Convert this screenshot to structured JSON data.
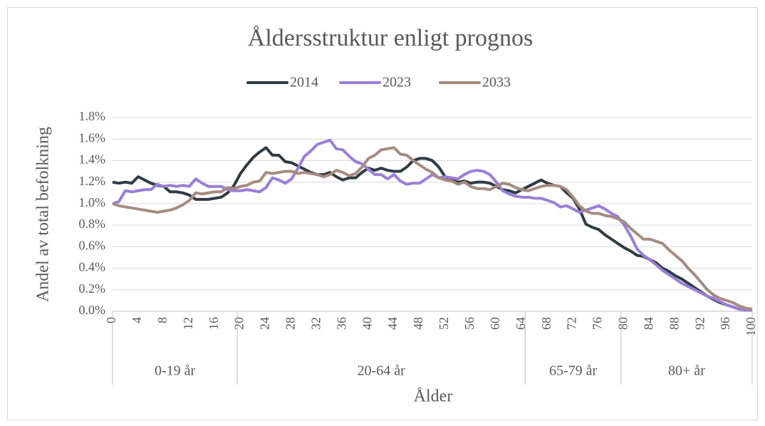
{
  "chart_data": {
    "type": "line",
    "title": "Åldersstruktur enligt prognos",
    "x_label": "Ålder",
    "y_label": "Andel av total befolkning",
    "x": [
      0,
      1,
      2,
      3,
      4,
      5,
      6,
      7,
      8,
      9,
      10,
      11,
      12,
      13,
      14,
      15,
      16,
      17,
      18,
      19,
      20,
      21,
      22,
      23,
      24,
      25,
      26,
      27,
      28,
      29,
      30,
      31,
      32,
      33,
      34,
      35,
      36,
      37,
      38,
      39,
      40,
      41,
      42,
      43,
      44,
      45,
      46,
      47,
      48,
      49,
      50,
      51,
      52,
      53,
      54,
      55,
      56,
      57,
      58,
      59,
      60,
      61,
      62,
      63,
      64,
      65,
      66,
      67,
      68,
      69,
      70,
      71,
      72,
      73,
      74,
      75,
      76,
      77,
      78,
      79,
      80,
      81,
      82,
      83,
      84,
      85,
      86,
      87,
      88,
      89,
      90,
      91,
      92,
      93,
      94,
      95,
      96,
      97,
      98,
      99,
      100
    ],
    "xlim": [
      0,
      100
    ],
    "xticks": [
      0,
      4,
      8,
      12,
      16,
      20,
      24,
      28,
      32,
      36,
      40,
      44,
      48,
      52,
      56,
      60,
      64,
      68,
      72,
      76,
      80,
      84,
      88,
      92,
      96,
      100
    ],
    "x_groups": [
      {
        "label": "0-19 år",
        "from": 0,
        "to": 19
      },
      {
        "label": "20-64 år",
        "from": 20,
        "to": 64
      },
      {
        "label": "65-79 år",
        "from": 65,
        "to": 79
      },
      {
        "label": "80+ år",
        "from": 80,
        "to": 100
      }
    ],
    "ylim": [
      0,
      1.8
    ],
    "yticks": [
      {
        "value": 0,
        "label": "0.0%"
      },
      {
        "value": 0.2,
        "label": "0.2%"
      },
      {
        "value": 0.4,
        "label": "0.4%"
      },
      {
        "value": 0.6,
        "label": "0.6%"
      },
      {
        "value": 0.8,
        "label": "0.8%"
      },
      {
        "value": 1.0,
        "label": "1.0%"
      },
      {
        "value": 1.2,
        "label": "1.2%"
      },
      {
        "value": 1.4,
        "label": "1.4%"
      },
      {
        "value": 1.6,
        "label": "1.6%"
      },
      {
        "value": 1.8,
        "label": "1.8%"
      }
    ],
    "grid": true,
    "legend": "top",
    "series": [
      {
        "name": "2014",
        "color": "#2f3b44",
        "values": [
          1.2,
          1.19,
          1.2,
          1.19,
          1.25,
          1.22,
          1.19,
          1.17,
          1.16,
          1.11,
          1.11,
          1.1,
          1.08,
          1.04,
          1.04,
          1.04,
          1.05,
          1.06,
          1.1,
          1.17,
          1.28,
          1.36,
          1.43,
          1.48,
          1.52,
          1.45,
          1.45,
          1.39,
          1.38,
          1.35,
          1.32,
          1.29,
          1.27,
          1.27,
          1.29,
          1.25,
          1.22,
          1.24,
          1.24,
          1.29,
          1.33,
          1.31,
          1.33,
          1.31,
          1.3,
          1.3,
          1.34,
          1.4,
          1.42,
          1.42,
          1.4,
          1.34,
          1.25,
          1.22,
          1.2,
          1.21,
          1.19,
          1.2,
          1.2,
          1.19,
          1.16,
          1.13,
          1.12,
          1.1,
          1.13,
          1.16,
          1.19,
          1.22,
          1.19,
          1.17,
          1.16,
          1.1,
          1.05,
          0.95,
          0.81,
          0.78,
          0.76,
          0.71,
          0.67,
          0.63,
          0.59,
          0.56,
          0.52,
          0.51,
          0.48,
          0.45,
          0.4,
          0.37,
          0.33,
          0.3,
          0.26,
          0.22,
          0.18,
          0.14,
          0.11,
          0.08,
          0.06,
          0.04,
          0.02,
          0.01,
          0.02
        ]
      },
      {
        "name": "2023",
        "color": "#9a7fd6",
        "values": [
          1.0,
          1.02,
          1.12,
          1.11,
          1.12,
          1.13,
          1.13,
          1.18,
          1.16,
          1.17,
          1.16,
          1.17,
          1.16,
          1.23,
          1.19,
          1.16,
          1.16,
          1.16,
          1.13,
          1.12,
          1.12,
          1.13,
          1.12,
          1.11,
          1.15,
          1.24,
          1.22,
          1.19,
          1.23,
          1.33,
          1.44,
          1.49,
          1.55,
          1.57,
          1.59,
          1.51,
          1.5,
          1.44,
          1.39,
          1.37,
          1.32,
          1.27,
          1.27,
          1.23,
          1.27,
          1.21,
          1.18,
          1.19,
          1.19,
          1.23,
          1.27,
          1.24,
          1.25,
          1.24,
          1.23,
          1.27,
          1.3,
          1.31,
          1.3,
          1.27,
          1.2,
          1.12,
          1.09,
          1.07,
          1.06,
          1.06,
          1.05,
          1.05,
          1.03,
          1.01,
          0.97,
          0.98,
          0.95,
          0.92,
          0.94,
          0.96,
          0.98,
          0.95,
          0.91,
          0.88,
          0.8,
          0.7,
          0.58,
          0.52,
          0.48,
          0.43,
          0.38,
          0.34,
          0.3,
          0.26,
          0.23,
          0.2,
          0.17,
          0.14,
          0.12,
          0.09,
          0.06,
          0.04,
          0.02,
          0.01,
          0.01
        ]
      },
      {
        "name": "2033",
        "color": "#a58c80",
        "values": [
          1.0,
          0.98,
          0.97,
          0.96,
          0.95,
          0.94,
          0.93,
          0.92,
          0.93,
          0.94,
          0.96,
          0.99,
          1.03,
          1.1,
          1.09,
          1.1,
          1.11,
          1.11,
          1.15,
          1.14,
          1.16,
          1.17,
          1.2,
          1.21,
          1.29,
          1.28,
          1.29,
          1.3,
          1.3,
          1.28,
          1.29,
          1.28,
          1.27,
          1.25,
          1.27,
          1.31,
          1.29,
          1.26,
          1.28,
          1.34,
          1.42,
          1.45,
          1.5,
          1.51,
          1.52,
          1.46,
          1.45,
          1.4,
          1.36,
          1.32,
          1.29,
          1.24,
          1.22,
          1.21,
          1.18,
          1.2,
          1.16,
          1.14,
          1.14,
          1.13,
          1.16,
          1.19,
          1.18,
          1.15,
          1.13,
          1.12,
          1.14,
          1.16,
          1.17,
          1.17,
          1.16,
          1.13,
          1.06,
          0.98,
          0.93,
          0.91,
          0.91,
          0.89,
          0.88,
          0.86,
          0.83,
          0.77,
          0.72,
          0.67,
          0.67,
          0.65,
          0.63,
          0.57,
          0.52,
          0.47,
          0.4,
          0.34,
          0.27,
          0.2,
          0.15,
          0.12,
          0.1,
          0.08,
          0.05,
          0.03,
          0.02
        ]
      }
    ]
  }
}
